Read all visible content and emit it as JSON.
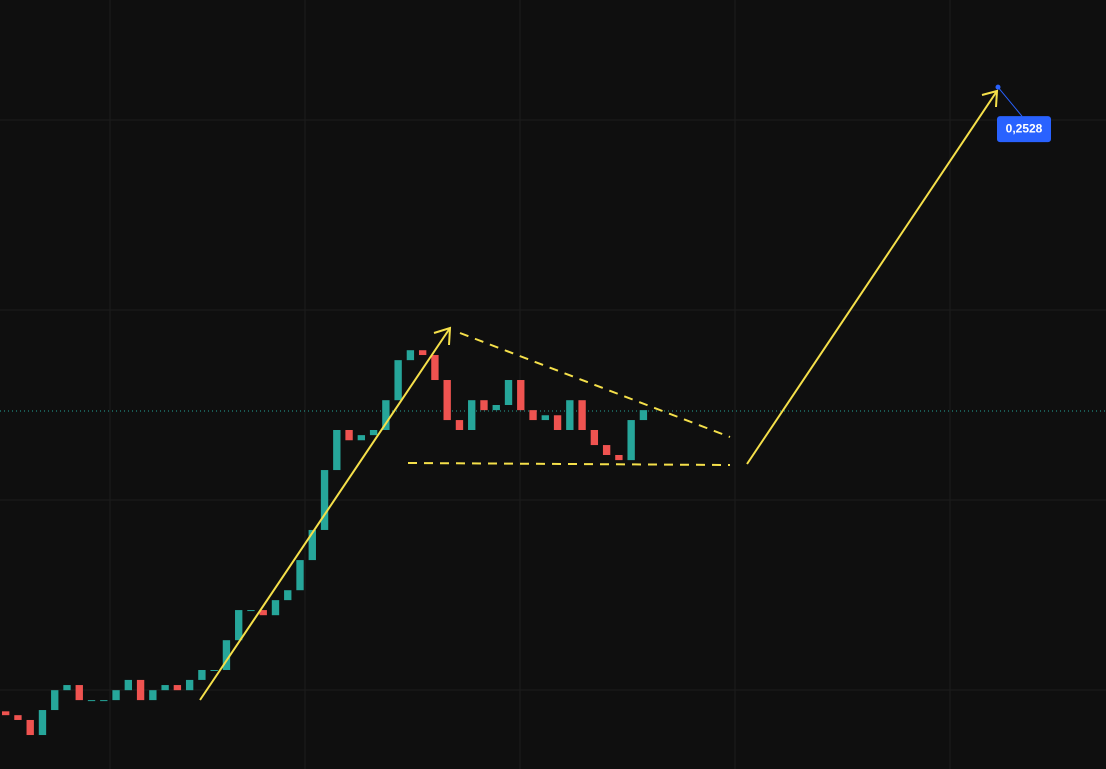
{
  "chart_data": {
    "type": "candlestick",
    "ylim": [
      0.04,
      0.28
    ],
    "up_color": "#26a69a",
    "down_color": "#ef5350",
    "open": [
      0.058,
      0.0568,
      0.0553,
      0.0506,
      0.0584,
      0.0646,
      0.0662,
      0.0615,
      0.0615,
      0.0615,
      0.0646,
      0.0678,
      0.0615,
      0.0646,
      0.0662,
      0.0646,
      0.0678,
      0.0709,
      0.0709,
      0.0802,
      0.0896,
      0.0896,
      0.088,
      0.0927,
      0.0958,
      0.1052,
      0.1146,
      0.1333,
      0.1458,
      0.1426,
      0.1442,
      0.1458,
      0.1551,
      0.1676,
      0.1707,
      0.1692,
      0.1614,
      0.1489,
      0.1458,
      0.1551,
      0.152,
      0.1536,
      0.1614,
      0.152,
      0.1489,
      0.1504,
      0.1458,
      0.1551,
      0.1458,
      0.1411,
      0.138,
      0.1364,
      0.1489
    ],
    "close": [
      0.0568,
      0.0553,
      0.0506,
      0.0584,
      0.0646,
      0.0662,
      0.0615,
      0.0615,
      0.0615,
      0.0646,
      0.0678,
      0.0615,
      0.0646,
      0.0662,
      0.0646,
      0.0678,
      0.0709,
      0.0709,
      0.0802,
      0.0896,
      0.0896,
      0.088,
      0.0927,
      0.0958,
      0.1052,
      0.1146,
      0.1333,
      0.1458,
      0.1426,
      0.1442,
      0.1458,
      0.1551,
      0.1676,
      0.1707,
      0.1692,
      0.1614,
      0.1489,
      0.1458,
      0.1551,
      0.152,
      0.1536,
      0.1614,
      0.152,
      0.1489,
      0.1504,
      0.1458,
      0.1551,
      0.1458,
      0.1411,
      0.138,
      0.1364,
      0.1489,
      0.152
    ],
    "target": {
      "value": 0.2528,
      "label": "0,2528",
      "color": "#2962ff"
    }
  }
}
